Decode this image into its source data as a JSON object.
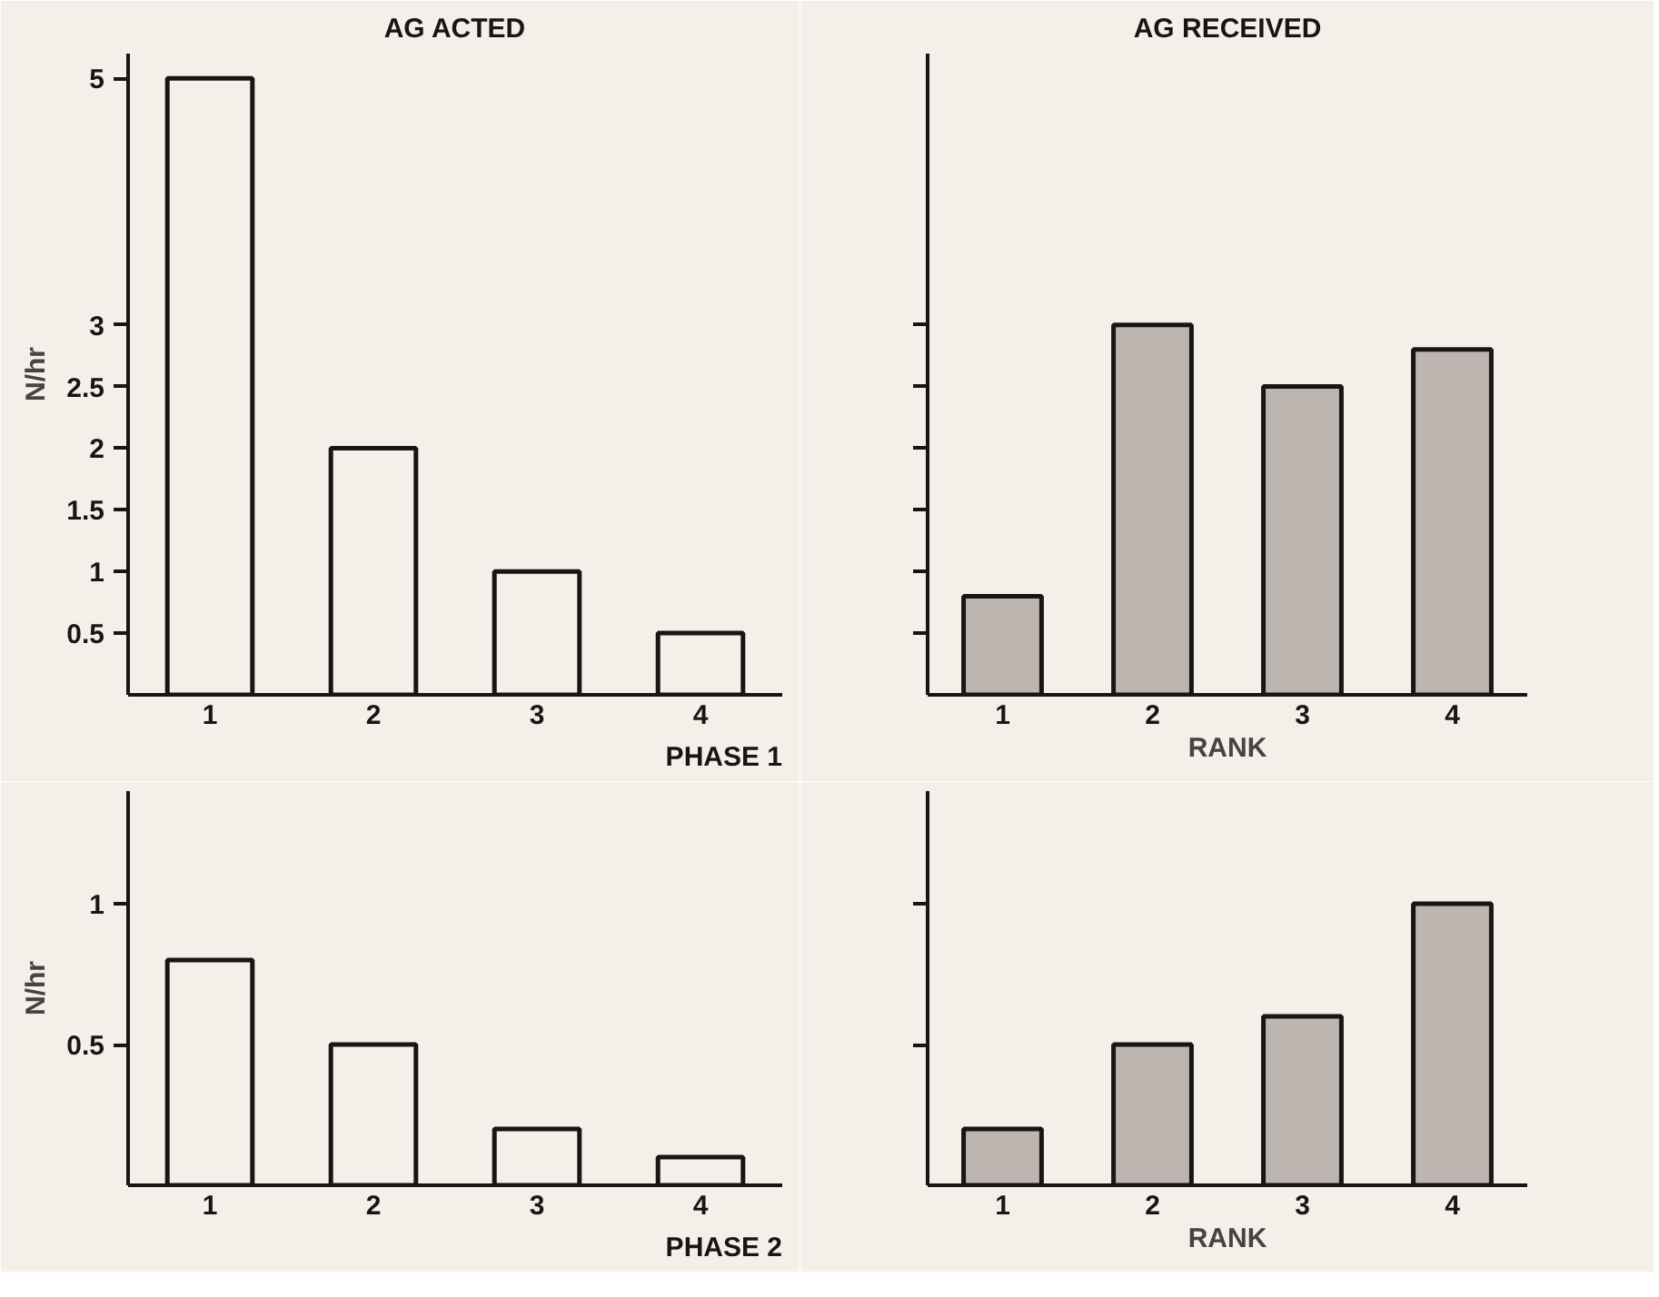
{
  "chart_data": [
    {
      "type": "bar",
      "title": "AG ACTED",
      "ylabel": "N/hr",
      "categories": [
        "1",
        "2",
        "3",
        "4"
      ],
      "values": [
        5,
        2,
        1,
        0.5
      ],
      "color": "#f5efea",
      "ylim": [
        0,
        5.2
      ],
      "yticks": [
        0.5,
        1,
        1.5,
        2,
        2.5,
        3,
        5
      ],
      "grid": false,
      "annotations": [
        "PHASE 1"
      ]
    },
    {
      "type": "bar",
      "title": "AG RECEIVED",
      "xlabel": "RANK",
      "categories": [
        "1",
        "2",
        "3",
        "4"
      ],
      "values": [
        0.8,
        3,
        2.5,
        2.8
      ],
      "color": "#bdb5b0",
      "ylim": [
        0,
        5.2
      ],
      "yticks": [
        0.5,
        1,
        1.5,
        2,
        2.5,
        3
      ],
      "tick_labels": "x",
      "grid": false
    },
    {
      "type": "bar",
      "ylabel": "N/hr",
      "categories": [
        "1",
        "2",
        "3",
        "4"
      ],
      "values": [
        0.8,
        0.5,
        0.2,
        0.1
      ],
      "color": "#f5efea",
      "ylim": [
        0,
        1.4
      ],
      "yticks": [
        0.5,
        1
      ],
      "grid": false,
      "annotations": [
        "PHASE 2"
      ]
    },
    {
      "type": "bar",
      "xlabel": "RANK",
      "categories": [
        "1",
        "2",
        "3",
        "4"
      ],
      "values": [
        0.2,
        0.5,
        0.6,
        1
      ],
      "color": "#bdb5b0",
      "ylim": [
        0,
        1.4
      ],
      "yticks": [
        0.5,
        1
      ],
      "tick_labels": "x",
      "grid": false
    }
  ]
}
